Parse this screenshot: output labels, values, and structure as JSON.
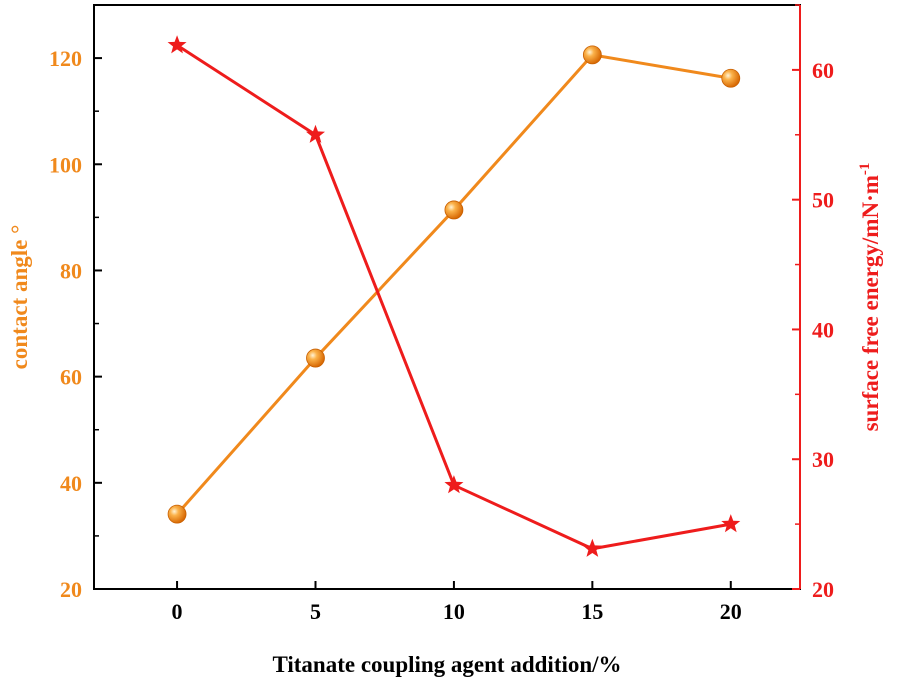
{
  "chart_data": {
    "type": "line",
    "title": "",
    "xlabel": "Titanate coupling agent addition/%",
    "x": [
      0,
      5,
      10,
      15,
      20
    ],
    "xticks": [
      "0",
      "5",
      "10",
      "15",
      "20"
    ],
    "xlim": [
      -3,
      22.5
    ],
    "y_left": {
      "label": "contact angle °",
      "ylim": [
        20,
        130
      ],
      "ticks": [
        "20",
        "40",
        "60",
        "80",
        "100",
        "120"
      ],
      "color": "#f0891c"
    },
    "y_right": {
      "label": "surface free energy/mN·m",
      "label_sup": "-1",
      "ylim": [
        20,
        65
      ],
      "ticks": [
        "20",
        "30",
        "40",
        "50",
        "60"
      ],
      "color": "#ee1c1c"
    },
    "series": [
      {
        "name": "contact angle",
        "axis": "left",
        "marker": "sphere",
        "color": "#f0891c",
        "values": [
          34.1,
          63.5,
          91.4,
          120.6,
          116.2
        ]
      },
      {
        "name": "surface free energy",
        "axis": "right",
        "marker": "star",
        "color": "#ee1c1c",
        "values": [
          61.9,
          55.0,
          28.0,
          23.1,
          25.0
        ]
      }
    ],
    "grid": false,
    "legend": "none"
  }
}
